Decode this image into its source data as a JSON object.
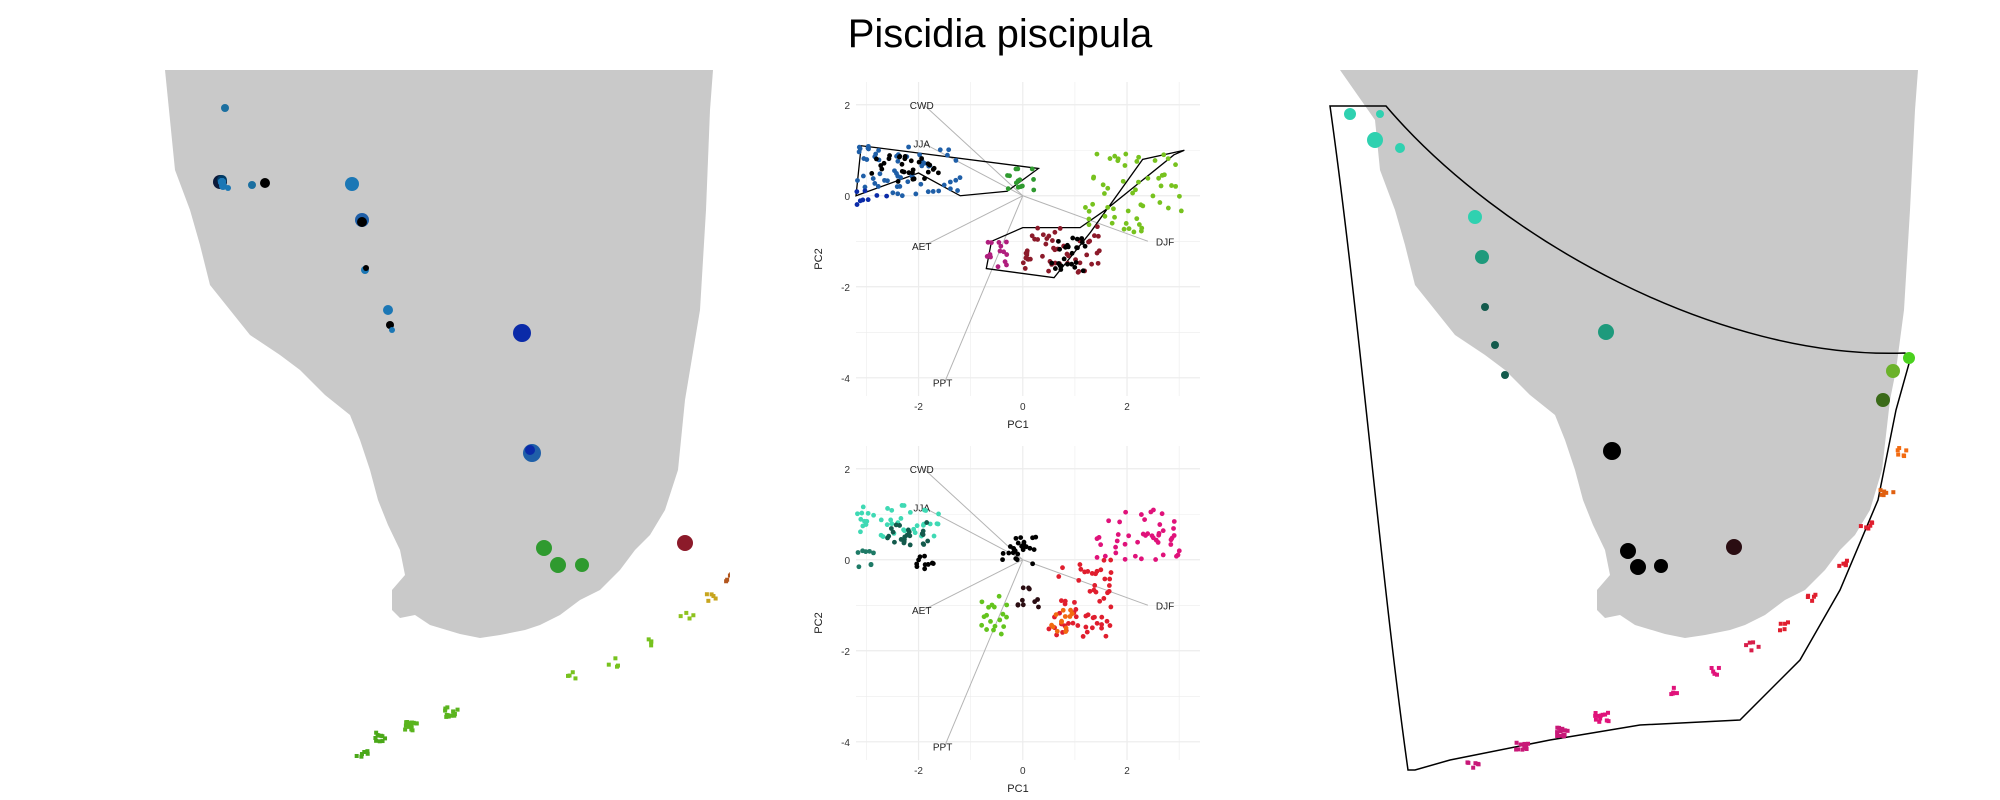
{
  "title": "Piscidia piscipula",
  "colors": {
    "land": "#c9c9c9",
    "grid": "#ececec",
    "arrow": "#b4b4b4",
    "hull": "#000000"
  },
  "chart_data": [
    {
      "type": "scatter",
      "panel": "pca-top",
      "xlabel": "PC1",
      "ylabel": "PC2",
      "xlim": [
        -3.2,
        3.4
      ],
      "ylim": [
        -4.4,
        2.5
      ],
      "x_ticks": [
        -2,
        0,
        2
      ],
      "y_ticks": [
        2,
        0,
        -2,
        -4
      ],
      "grid": true,
      "hull_outlines": true,
      "loadings": [
        {
          "label": "CWD",
          "x": -1.9,
          "y": 2.0
        },
        {
          "label": "JJA",
          "x": -1.9,
          "y": 1.15
        },
        {
          "label": "AET",
          "x": -1.9,
          "y": -1.1
        },
        {
          "label": "DJF",
          "x": 2.4,
          "y": -1.0
        },
        {
          "label": "PPT",
          "x": -1.5,
          "y": -4.1
        }
      ],
      "clusters": [
        {
          "color": "#1f5fa8",
          "x": [
            -3.2,
            -1.2
          ],
          "y": [
            0.0,
            1.1
          ],
          "n": 60
        },
        {
          "color": "#0a2aa8",
          "x": [
            -3.2,
            -2.6
          ],
          "y": [
            -0.2,
            0.15
          ],
          "n": 8
        },
        {
          "color": "#000000",
          "x": [
            -2.9,
            -1.6
          ],
          "y": [
            0.3,
            0.9
          ],
          "n": 30
        },
        {
          "color": "#2f9a2f",
          "x": [
            -0.3,
            0.3
          ],
          "y": [
            0.1,
            0.6
          ],
          "n": 14
        },
        {
          "color": "#77c21e",
          "x": [
            1.2,
            3.1
          ],
          "y": [
            -0.8,
            1.0
          ],
          "n": 55
        },
        {
          "color": "#8c1a2a",
          "x": [
            0.0,
            1.5
          ],
          "y": [
            -1.7,
            -0.6
          ],
          "n": 50
        },
        {
          "color": "#b01e7e",
          "x": [
            -0.7,
            -0.3
          ],
          "y": [
            -1.6,
            -1.0
          ],
          "n": 14
        },
        {
          "color": "#000000",
          "x": [
            0.5,
            1.2
          ],
          "y": [
            -1.7,
            -0.9
          ],
          "n": 25
        }
      ]
    },
    {
      "type": "scatter",
      "panel": "pca-bottom",
      "xlabel": "PC1",
      "ylabel": "PC2",
      "xlim": [
        -3.2,
        3.4
      ],
      "ylim": [
        -4.4,
        2.5
      ],
      "x_ticks": [
        -2,
        0,
        2
      ],
      "y_ticks": [
        2,
        0,
        -2,
        -4
      ],
      "grid": true,
      "hull_outlines": false,
      "loadings": [
        {
          "label": "CWD",
          "x": -1.9,
          "y": 2.0
        },
        {
          "label": "JJA",
          "x": -1.9,
          "y": 1.15
        },
        {
          "label": "AET",
          "x": -1.9,
          "y": -1.1
        },
        {
          "label": "DJF",
          "x": 2.4,
          "y": -1.0
        },
        {
          "label": "PPT",
          "x": -1.5,
          "y": -4.1
        }
      ],
      "clusters": [
        {
          "color": "#3fd9b4",
          "x": [
            -3.2,
            -1.6
          ],
          "y": [
            0.5,
            1.2
          ],
          "n": 40
        },
        {
          "color": "#1e7a66",
          "x": [
            -3.2,
            -2.8
          ],
          "y": [
            -0.2,
            0.2
          ],
          "n": 8
        },
        {
          "color": "#135a4c",
          "x": [
            -2.6,
            -1.8
          ],
          "y": [
            0.3,
            0.9
          ],
          "n": 24
        },
        {
          "color": "#000000",
          "x": [
            -2.1,
            -1.7
          ],
          "y": [
            -0.2,
            0.1
          ],
          "n": 10
        },
        {
          "color": "#000000",
          "x": [
            -0.4,
            0.3
          ],
          "y": [
            -0.1,
            0.5
          ],
          "n": 24
        },
        {
          "color": "#64c41e",
          "x": [
            -0.8,
            -0.3
          ],
          "y": [
            -1.7,
            -0.8
          ],
          "n": 18
        },
        {
          "color": "#2a0d12",
          "x": [
            -0.1,
            0.4
          ],
          "y": [
            -1.1,
            -0.6
          ],
          "n": 10
        },
        {
          "color": "#e01e2e",
          "x": [
            0.5,
            1.7
          ],
          "y": [
            -1.7,
            0.0
          ],
          "n": 60
        },
        {
          "color": "#f26a10",
          "x": [
            0.5,
            1.0
          ],
          "y": [
            -1.6,
            -1.1
          ],
          "n": 14
        },
        {
          "color": "#e0127a",
          "x": [
            1.4,
            3.1
          ],
          "y": [
            0.0,
            1.1
          ],
          "n": 45
        }
      ]
    }
  ]
}
